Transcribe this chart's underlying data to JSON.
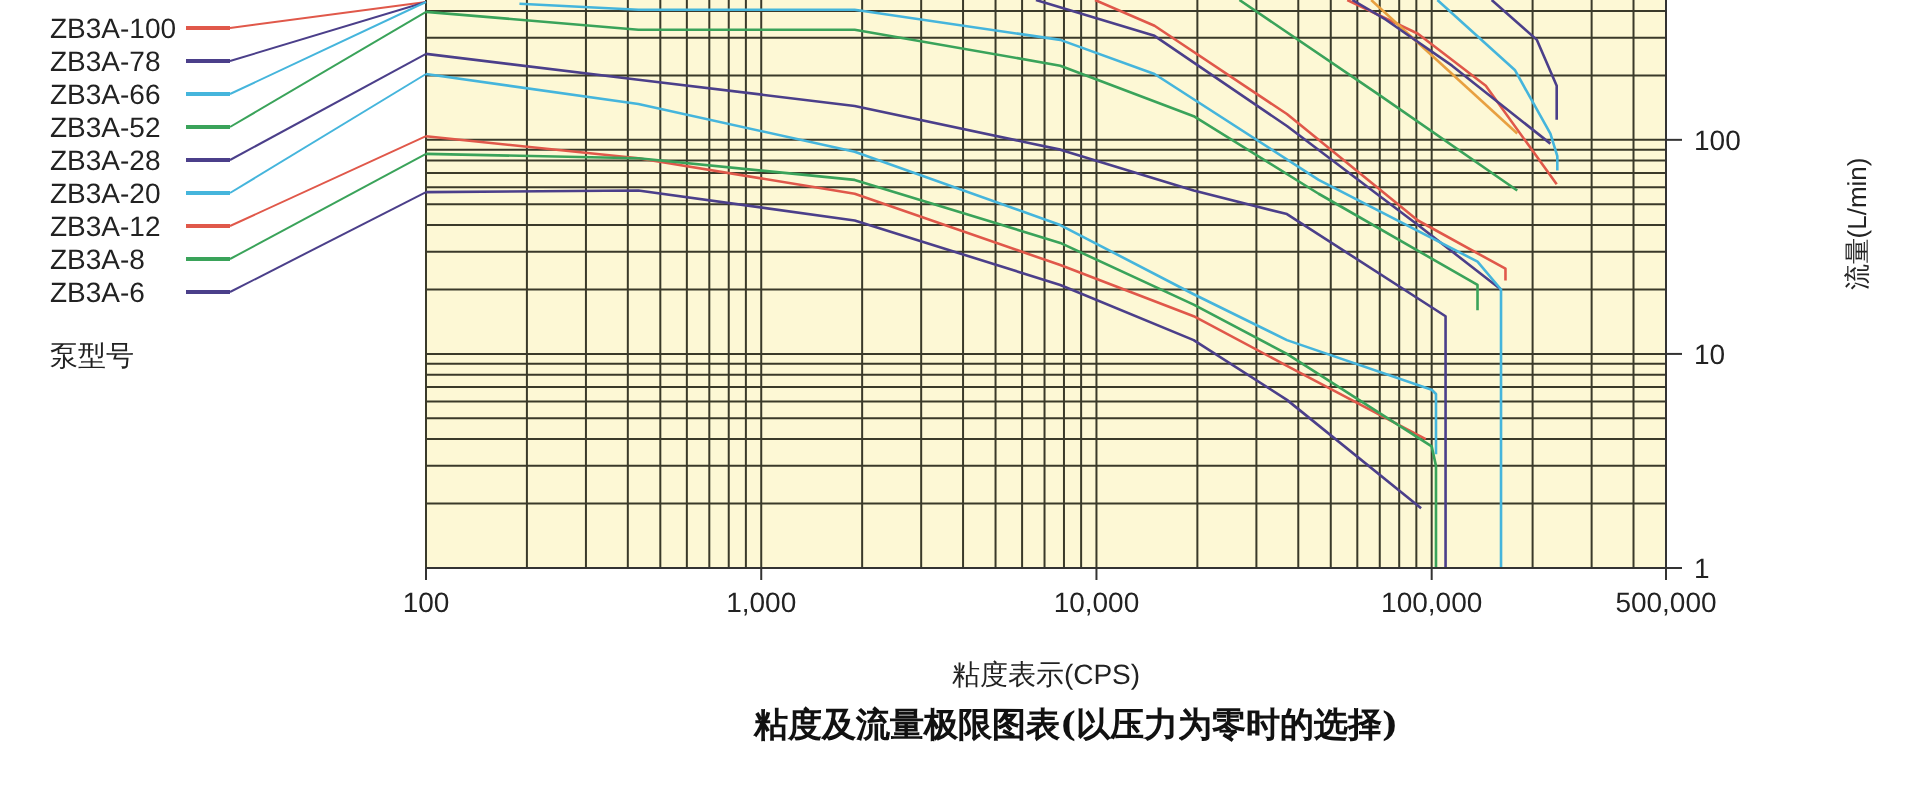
{
  "chart_data": {
    "type": "line",
    "title": "粘度及流量极限图表(以压力为零时的选择)",
    "xlabel": "粘度表示(CPS)",
    "ylabel": "流量(L/min)",
    "legend_title": "泵型号",
    "legend": "left",
    "log": "xy",
    "grid": true,
    "marker": "none",
    "line_style": "solid",
    "xlim": [
      100,
      500000
    ],
    "ylim": [
      1,
      450
    ],
    "xticks": [
      {
        "value": 100,
        "label": "100"
      },
      {
        "value": 200,
        "label": null
      },
      {
        "value": 300,
        "label": null
      },
      {
        "value": 400,
        "label": null
      },
      {
        "value": 500,
        "label": null
      },
      {
        "value": 600,
        "label": null
      },
      {
        "value": 700,
        "label": null
      },
      {
        "value": 800,
        "label": null
      },
      {
        "value": 900,
        "label": null
      },
      {
        "value": 1000,
        "label": "1,000"
      },
      {
        "value": 2000,
        "label": null
      },
      {
        "value": 3000,
        "label": null
      },
      {
        "value": 4000,
        "label": null
      },
      {
        "value": 5000,
        "label": null
      },
      {
        "value": 6000,
        "label": null
      },
      {
        "value": 7000,
        "label": null
      },
      {
        "value": 8000,
        "label": null
      },
      {
        "value": 9000,
        "label": null
      },
      {
        "value": 10000,
        "label": "10,000"
      },
      {
        "value": 20000,
        "label": null
      },
      {
        "value": 30000,
        "label": null
      },
      {
        "value": 40000,
        "label": null
      },
      {
        "value": 50000,
        "label": null
      },
      {
        "value": 60000,
        "label": null
      },
      {
        "value": 70000,
        "label": null
      },
      {
        "value": 80000,
        "label": null
      },
      {
        "value": 90000,
        "label": null
      },
      {
        "value": 100000,
        "label": "100,000"
      },
      {
        "value": 200000,
        "label": null
      },
      {
        "value": 300000,
        "label": null
      },
      {
        "value": 400000,
        "label": null
      },
      {
        "value": 500000,
        "label": "500,000"
      }
    ],
    "yticks": [
      1,
      {
        "value": 2,
        "label": null
      },
      {
        "value": 3,
        "label": null
      },
      {
        "value": 4,
        "label": null
      },
      {
        "value": 5,
        "label": null
      },
      {
        "value": 6,
        "label": null
      },
      {
        "value": 7,
        "label": null
      },
      {
        "value": 8,
        "label": null
      },
      {
        "value": 9,
        "label": null
      },
      10,
      {
        "value": 20,
        "label": null
      },
      {
        "value": 30,
        "label": null
      },
      {
        "value": 40,
        "label": null
      },
      {
        "value": 50,
        "label": null
      },
      {
        "value": 60,
        "label": null
      },
      {
        "value": 70,
        "label": null
      },
      {
        "value": 80,
        "label": null
      },
      {
        "value": 90,
        "label": null
      },
      100,
      {
        "value": 200,
        "label": null
      },
      {
        "value": 300,
        "label": null
      },
      {
        "value": 400,
        "label": null
      }
    ],
    "series": [
      {
        "name": "ZB3A-100",
        "color": "#e0584a",
        "x": [
          9900,
          14900,
          37000,
          91000,
          166000,
          166000
        ],
        "values": [
          450,
          341,
          132,
          42,
          25,
          22
        ]
      },
      {
        "name": "ZB3A-78",
        "color": "#4b3f8a",
        "x": [
          6600,
          14900,
          37000,
          91000,
          161000
        ],
        "values": [
          450,
          306,
          116,
          40,
          20
        ]
      },
      {
        "name": "ZB3A-66",
        "color": "#45b5dc",
        "x": [
          190,
          430,
          1900,
          7800,
          14900,
          46000,
          137000,
          161000,
          161000
        ],
        "values": [
          432,
          405,
          405,
          293,
          203,
          65,
          27,
          20,
          1
        ]
      },
      {
        "name": "ZB3A-52",
        "color": "#3aa35a",
        "x": [
          100,
          430,
          1900,
          7800,
          19500,
          46000,
          137000,
          137000
        ],
        "values": [
          396,
          327,
          327,
          222,
          129,
          56,
          21,
          16
        ]
      },
      {
        "name": "ZB3A-28",
        "color": "#4b3f8a",
        "x": [
          100,
          430,
          1900,
          7800,
          19500,
          37000,
          110000,
          110000
        ],
        "values": [
          252,
          191,
          144,
          90,
          58,
          45,
          15,
          1
        ]
      },
      {
        "name": "ZB3A-20",
        "color": "#45b5dc",
        "x": [
          100,
          430,
          1900,
          7800,
          19500,
          37000,
          100000,
          103000,
          103000
        ],
        "values": [
          203,
          147,
          88,
          40,
          19,
          11.6,
          6.8,
          6.5,
          3.4
        ]
      },
      {
        "name": "ZB3A-12",
        "color": "#e0584a",
        "x": [
          100,
          430,
          1900,
          7800,
          19500,
          37000,
          96000
        ],
        "values": [
          104,
          82,
          56,
          26,
          15,
          8.8,
          4
        ]
      },
      {
        "name": "ZB3A-8",
        "color": "#3aa35a",
        "x": [
          100,
          430,
          1900,
          7800,
          19500,
          37000,
          100000,
          103000,
          103000
        ],
        "values": [
          86,
          82,
          65,
          33,
          17,
          10,
          3.7,
          3,
          1
        ]
      },
      {
        "name": "ZB3A-6",
        "color": "#4b3f8a",
        "x": [
          100,
          430,
          1900,
          7800,
          19500,
          37000,
          93000
        ],
        "values": [
          57,
          58,
          42,
          21,
          11.6,
          6.1,
          1.9
        ]
      },
      {
        "color": "#4b3f8a",
        "x": [
          151000,
          206000,
          236000,
          236000
        ],
        "values": [
          450,
          293,
          179,
          124
        ]
      },
      {
        "color": "#45b5dc",
        "x": [
          104000,
          177000,
          226000,
          237000,
          237000
        ],
        "values": [
          450,
          212,
          107,
          84,
          72
        ]
      },
      {
        "color": "#e0584a",
        "x": [
          56000,
          91000,
          145000,
          236000
        ],
        "values": [
          450,
          313,
          179,
          62
        ]
      },
      {
        "color": "#e8a040",
        "x": [
          66000,
          180000
        ],
        "values": [
          450,
          107
        ]
      },
      {
        "color": "#4b3f8a",
        "x": [
          58000,
          73000,
          115000,
          226000
        ],
        "values": [
          450,
          364,
          222,
          96
        ]
      },
      {
        "color": "#3aa35a",
        "x": [
          26700,
          69000,
          180000
        ],
        "values": [
          450,
          164,
          58
        ]
      }
    ]
  }
}
